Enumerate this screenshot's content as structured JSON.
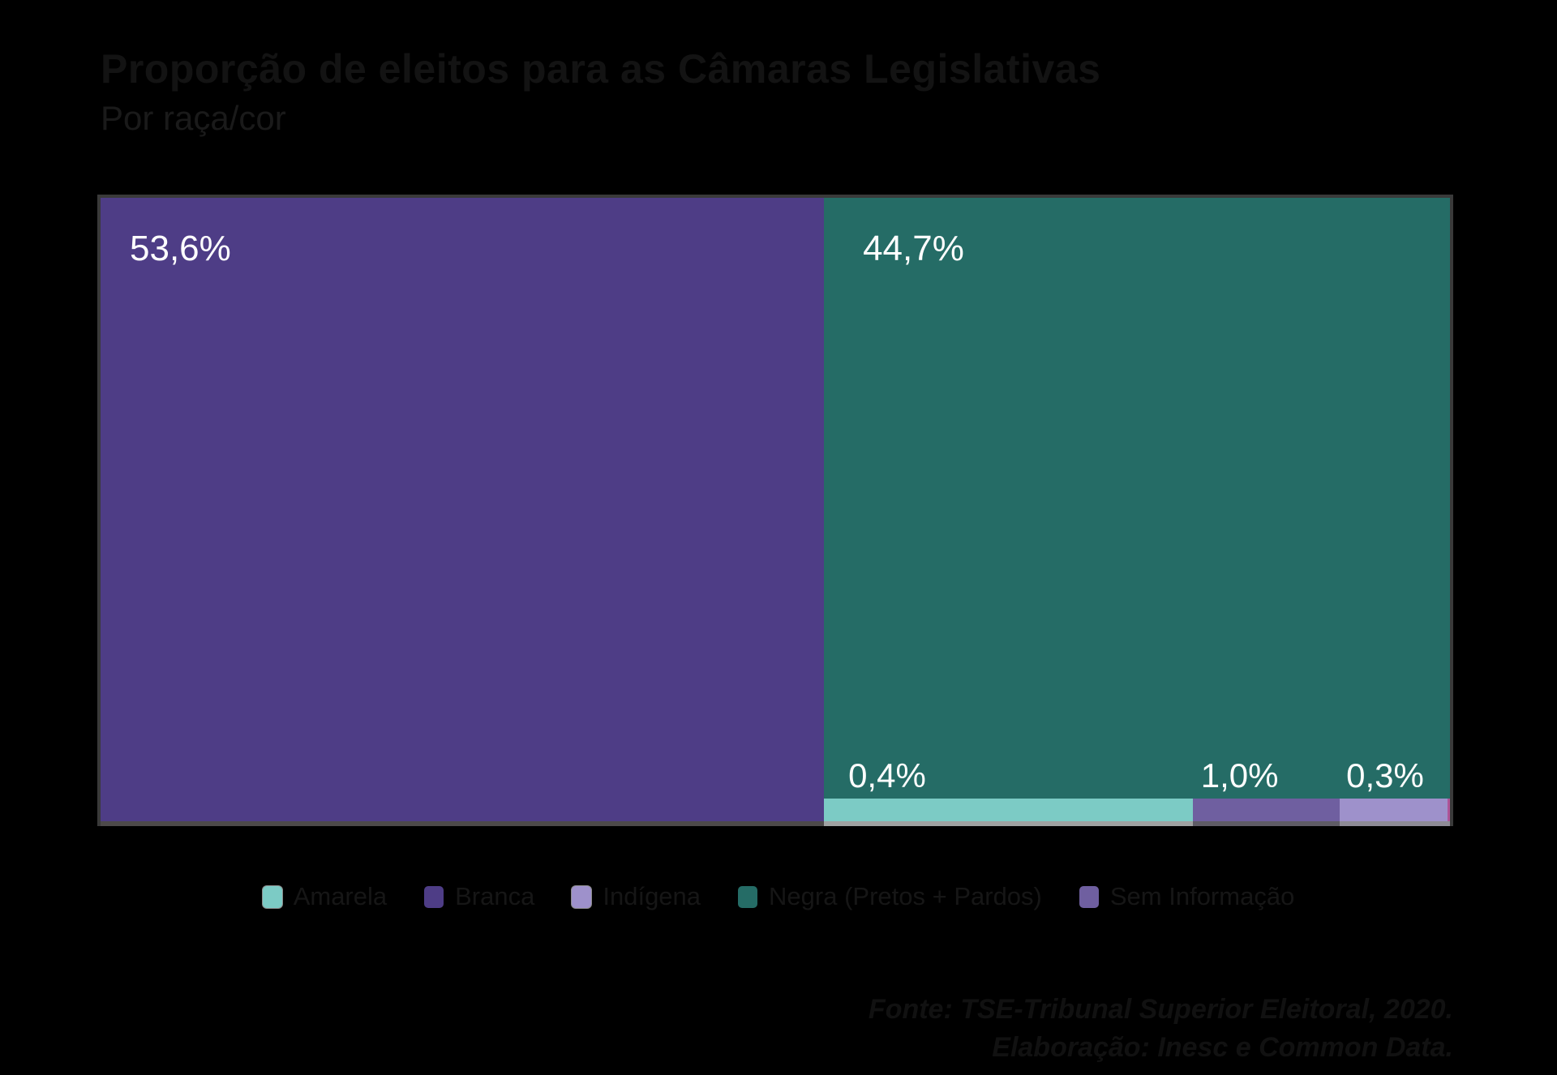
{
  "header": {
    "title": "Proporção de eleitos para as Câmaras Legislativas",
    "subtitle": "Por raça/cor"
  },
  "chart_data": {
    "type": "treemap",
    "title": "Proporção de eleitos para as Câmaras Legislativas",
    "subtitle": "Por raça/cor",
    "unit": "percent",
    "categories": [
      "Branca",
      "Negra (Pretos + Pardos)",
      "Amarela",
      "Sem Informação",
      "Indígena"
    ],
    "values": [
      53.6,
      44.7,
      0.4,
      1.0,
      0.3
    ],
    "series": [
      {
        "name": "Branca",
        "value": 53.6,
        "label": "53,6%",
        "color": "#4E3D86"
      },
      {
        "name": "Negra (Pretos + Pardos)",
        "value": 44.7,
        "label": "44,7%",
        "color": "#256C66"
      },
      {
        "name": "Amarela",
        "value": 0.4,
        "label": "0,4%",
        "color": "#7CCBC5"
      },
      {
        "name": "Sem Informação",
        "value": 1.0,
        "label": "1,0%",
        "color": "#6F5FA0"
      },
      {
        "name": "Indígena",
        "value": 0.3,
        "label": "0,3%",
        "color": "#9E91CB"
      }
    ],
    "legend_position": "bottom",
    "background_color": "#000000",
    "label_color": "#FFFFFF"
  },
  "legend": {
    "items": [
      {
        "label": "Amarela",
        "color": "#7CCBC5"
      },
      {
        "label": "Branca",
        "color": "#4E3D86"
      },
      {
        "label": "Indígena",
        "color": "#9E91CB"
      },
      {
        "label": "Negra (Pretos + Pardos)",
        "color": "#256C66"
      },
      {
        "label": "Sem Informação",
        "color": "#6F5FA0"
      }
    ]
  },
  "footer": {
    "source": "Fonte: TSE-Tribunal Superior Eleitoral, 2020.",
    "elaboration": "Elaboração: Inesc e Common Data."
  }
}
